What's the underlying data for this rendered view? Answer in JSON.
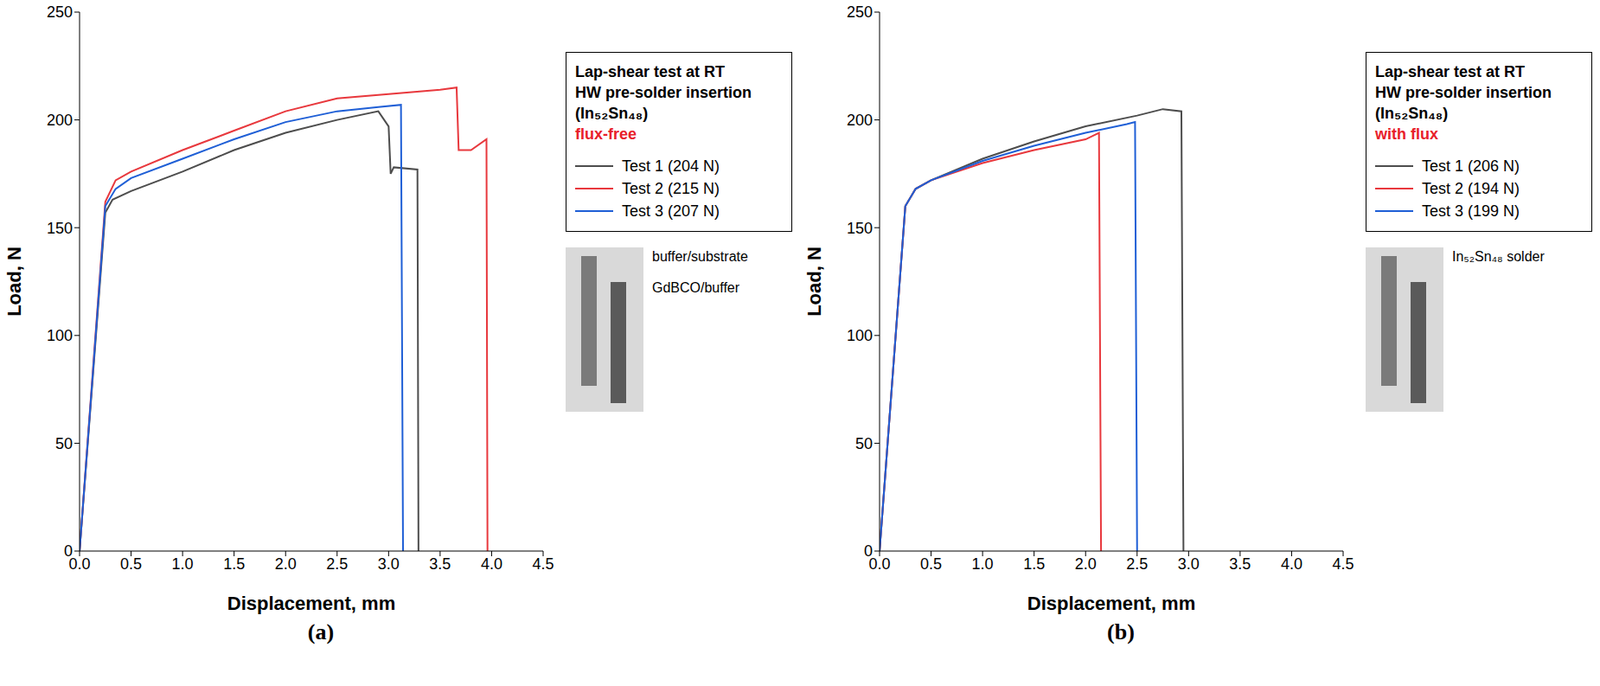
{
  "chart_data": [
    {
      "type": "line",
      "title": "(a)",
      "x_label": "Displacement, mm",
      "y_label": "Load, N",
      "annotations": [
        "Lap-shear test at RT",
        "HW pre-solder insertion (In₅₂Sn₄₈)"
      ],
      "subtitle": "flux-free",
      "photo_labels": [
        "buffer/substrate",
        "GdBCO/buffer"
      ],
      "xlim": [
        0,
        4.5
      ],
      "ylim": [
        0,
        250
      ],
      "xticks": [
        {
          "value": 0,
          "label": "0.0"
        },
        0.5,
        {
          "value": 1,
          "label": "1.0"
        },
        1.5,
        {
          "value": 2,
          "label": "2.0"
        },
        2.5,
        {
          "value": 3,
          "label": "3.0"
        },
        3.5,
        {
          "value": 4,
          "label": "4.0"
        },
        4.5
      ],
      "yticks": [
        0,
        50,
        100,
        150,
        200,
        250
      ],
      "grid": false,
      "legend": "right",
      "series": [
        {
          "name": "Test 1 (204 N)",
          "color": "#4d4d4d",
          "x": [
            0,
            0.25,
            0.32,
            0.5,
            1.0,
            1.5,
            2.0,
            2.5,
            2.9,
            3.0,
            3.02,
            3.05,
            3.28,
            3.29
          ],
          "values": [
            0,
            157,
            163,
            167,
            176,
            186,
            194,
            200,
            204,
            197,
            175,
            178,
            177,
            0
          ]
        },
        {
          "name": "Test 2 (215 N)",
          "color": "#e8383d",
          "x": [
            0,
            0.25,
            0.35,
            0.5,
            1.0,
            1.5,
            2.0,
            2.5,
            3.0,
            3.5,
            3.66,
            3.68,
            3.8,
            3.95,
            3.96
          ],
          "values": [
            0,
            162,
            172,
            176,
            186,
            195,
            204,
            210,
            212,
            214,
            215,
            186,
            186,
            191,
            0
          ]
        },
        {
          "name": "Test 3 (207 N)",
          "color": "#1f5fd6",
          "x": [
            0,
            0.25,
            0.35,
            0.5,
            1.0,
            1.5,
            2.0,
            2.5,
            2.9,
            3.12,
            3.14
          ],
          "values": [
            0,
            160,
            168,
            173,
            182,
            191,
            199,
            204,
            206,
            207,
            0
          ]
        }
      ]
    },
    {
      "type": "line",
      "title": "(b)",
      "x_label": "Displacement, mm",
      "y_label": "Load, N",
      "annotations": [
        "Lap-shear test at RT",
        "HW pre-solder insertion (In₅₂Sn₄₈)"
      ],
      "subtitle": "with flux",
      "photo_labels": [
        "In₅₂Sn₄₈ solder"
      ],
      "xlim": [
        0,
        4.5
      ],
      "ylim": [
        0,
        250
      ],
      "xticks": [
        {
          "value": 0,
          "label": "0.0"
        },
        0.5,
        {
          "value": 1,
          "label": "1.0"
        },
        1.5,
        {
          "value": 2,
          "label": "2.0"
        },
        2.5,
        {
          "value": 3,
          "label": "3.0"
        },
        3.5,
        {
          "value": 4,
          "label": "4.0"
        },
        4.5
      ],
      "yticks": [
        0,
        50,
        100,
        150,
        200,
        250
      ],
      "grid": false,
      "legend": "right",
      "series": [
        {
          "name": "Test 1 (206 N)",
          "color": "#4d4d4d",
          "x": [
            0,
            0.25,
            0.35,
            0.5,
            1.0,
            1.5,
            2.0,
            2.5,
            2.75,
            2.93,
            2.95
          ],
          "values": [
            0,
            160,
            168,
            172,
            182,
            190,
            197,
            202,
            205,
            204,
            0
          ]
        },
        {
          "name": "Test 2 (194 N)",
          "color": "#e8383d",
          "x": [
            0,
            0.25,
            0.35,
            0.5,
            1.0,
            1.5,
            2.0,
            2.13,
            2.15
          ],
          "values": [
            0,
            160,
            168,
            172,
            180,
            186,
            191,
            194,
            0
          ]
        },
        {
          "name": "Test 3 (199 N)",
          "color": "#1f5fd6",
          "x": [
            0,
            0.25,
            0.35,
            0.5,
            1.0,
            1.5,
            2.0,
            2.4,
            2.48,
            2.5
          ],
          "values": [
            0,
            160,
            168,
            172,
            181,
            188,
            194,
            198,
            199,
            0
          ]
        }
      ]
    }
  ]
}
